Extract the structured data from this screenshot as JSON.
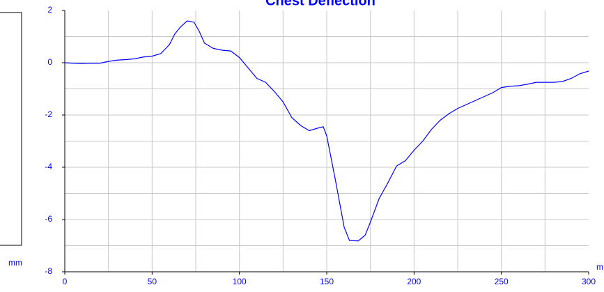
{
  "chart_data": {
    "type": "line",
    "title": "Chest Deflection",
    "xlabel": "m",
    "ylabel": "mm",
    "x": [
      0,
      5,
      10,
      15,
      20,
      25,
      30,
      35,
      40,
      45,
      50,
      55,
      60,
      63,
      66,
      70,
      74,
      77,
      80,
      85,
      90,
      95,
      100,
      105,
      110,
      115,
      120,
      125,
      130,
      135,
      140,
      145,
      148,
      150,
      155,
      160,
      163,
      168,
      172,
      175,
      180,
      185,
      190,
      195,
      200,
      205,
      210,
      215,
      220,
      225,
      230,
      235,
      240,
      245,
      250,
      255,
      260,
      265,
      270,
      275,
      280,
      285,
      290,
      295,
      300
    ],
    "series": [
      {
        "name": "Chest Deflection",
        "color": "#0000ff",
        "values": [
          0,
          -0.02,
          -0.03,
          -0.02,
          -0.02,
          0.05,
          0.1,
          0.12,
          0.15,
          0.22,
          0.25,
          0.35,
          0.7,
          1.1,
          1.35,
          1.6,
          1.55,
          1.2,
          0.75,
          0.55,
          0.48,
          0.45,
          0.2,
          -0.2,
          -0.6,
          -0.75,
          -1.1,
          -1.5,
          -2.1,
          -2.4,
          -2.6,
          -2.5,
          -2.45,
          -2.8,
          -4.5,
          -6.3,
          -6.8,
          -6.82,
          -6.6,
          -6.1,
          -5.2,
          -4.6,
          -3.95,
          -3.75,
          -3.35,
          -3.0,
          -2.55,
          -2.2,
          -1.95,
          -1.75,
          -1.6,
          -1.45,
          -1.3,
          -1.15,
          -0.95,
          -0.9,
          -0.88,
          -0.82,
          -0.75,
          -0.75,
          -0.75,
          -0.72,
          -0.6,
          -0.42,
          -0.32
        ]
      }
    ],
    "xlim": [
      0,
      300
    ],
    "xticks": [
      0,
      50,
      100,
      150,
      200,
      250,
      300
    ],
    "xgrid": [
      25,
      50,
      75,
      100,
      125,
      150,
      175,
      200,
      225,
      250,
      275
    ],
    "ylim": [
      -8,
      2
    ],
    "yticks": [
      -8,
      -6,
      -4,
      -2,
      0,
      2
    ],
    "ygrid": [
      -7,
      -6,
      -5,
      -4,
      -3,
      -2,
      -1,
      0,
      1
    ],
    "grid": true
  }
}
